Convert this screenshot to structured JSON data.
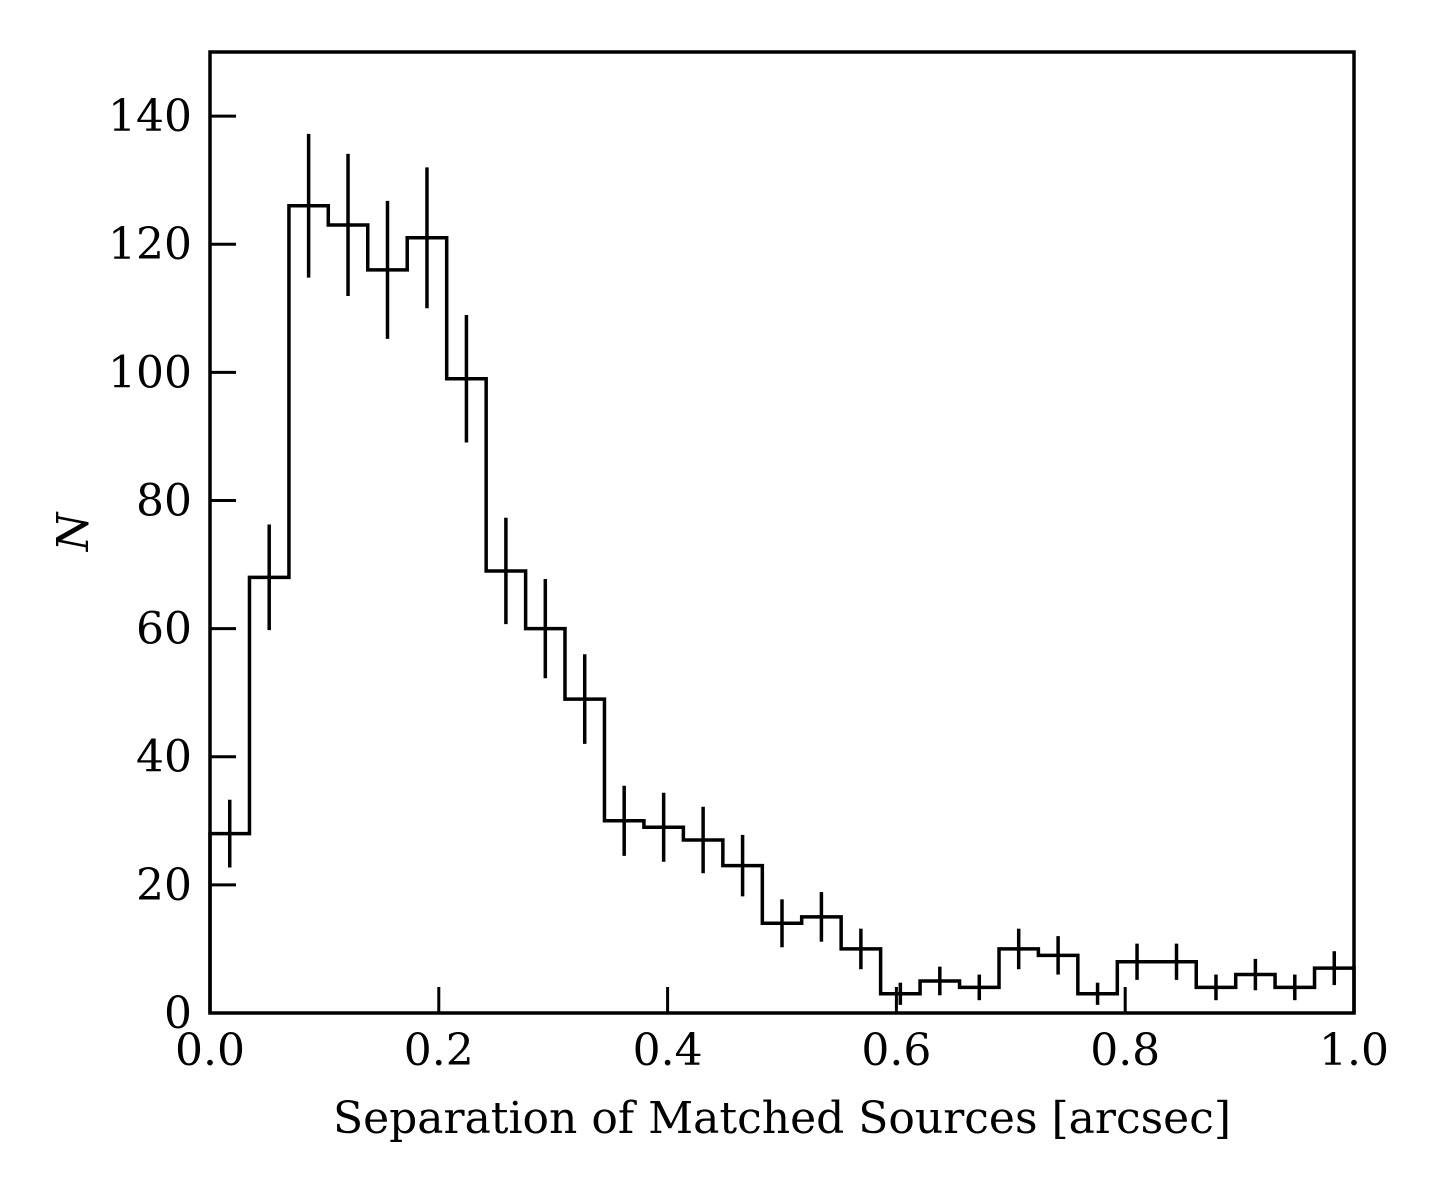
{
  "chart_data": {
    "type": "bar",
    "style": "step-histogram-with-error-bars",
    "xlabel": "Separation of Matched Sources [arcsec]",
    "ylabel": "N",
    "xlim": [
      0.0,
      1.0
    ],
    "ylim": [
      0,
      150
    ],
    "xticks": [
      "0.0",
      "0.2",
      "0.4",
      "0.6",
      "0.8",
      "1.0"
    ],
    "xtick_values": [
      0.0,
      0.2,
      0.4,
      0.6,
      0.8,
      1.0
    ],
    "yticks": [
      "0",
      "20",
      "40",
      "60",
      "80",
      "100",
      "120",
      "140"
    ],
    "ytick_values": [
      0,
      20,
      40,
      60,
      80,
      100,
      120,
      140
    ],
    "bin_edges": [
      0.0,
      0.0345,
      0.069,
      0.1034,
      0.1379,
      0.1724,
      0.2069,
      0.2414,
      0.2759,
      0.3103,
      0.3448,
      0.3793,
      0.4138,
      0.4483,
      0.4828,
      0.5172,
      0.5517,
      0.5862,
      0.6207,
      0.6552,
      0.6897,
      0.7241,
      0.7586,
      0.7931,
      0.8276,
      0.8621,
      0.8966,
      0.931,
      0.9655,
      1.0
    ],
    "counts": [
      28,
      68,
      126,
      123,
      116,
      121,
      99,
      69,
      60,
      49,
      30,
      29,
      27,
      23,
      14,
      15,
      10,
      3,
      5,
      4,
      10,
      9,
      3,
      8,
      8,
      4,
      6,
      4,
      7
    ],
    "grid": false,
    "colors": {
      "line": "#000000",
      "background": "#ffffff"
    }
  }
}
